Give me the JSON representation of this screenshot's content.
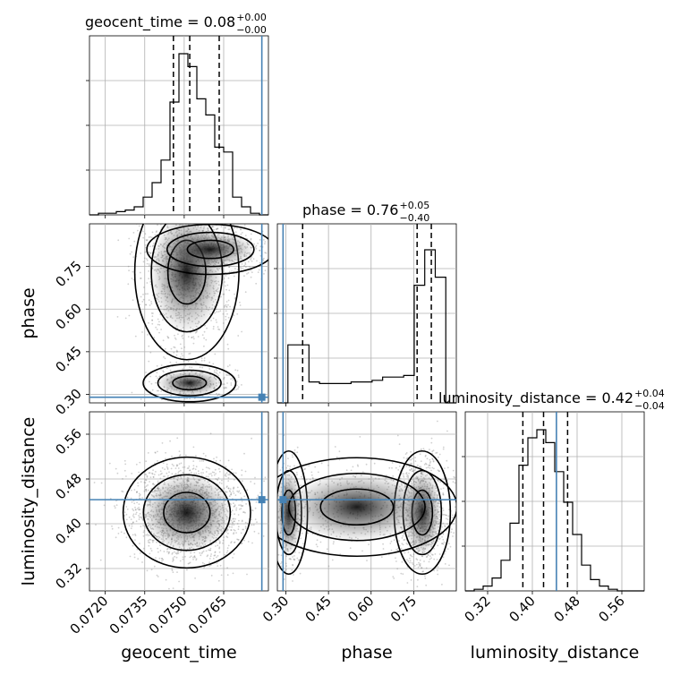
{
  "chart_data": {
    "type": "corner",
    "parameters": [
      {
        "name": "geocent_time",
        "title": "geocent_time = 0.08",
        "title_sup": "+0.00",
        "title_sub": "−0.00",
        "range": [
          0.0714,
          0.0782
        ],
        "ticks": [
          "0.0720",
          "0.0735",
          "0.0750",
          "0.0765"
        ],
        "tick_values": [
          0.072,
          0.0735,
          0.075,
          0.0765
        ],
        "truth": 0.07795,
        "quantiles": [
          0.07459,
          0.07521,
          0.07633
        ],
        "hist": [
          0.0,
          0.01,
          0.01,
          0.02,
          0.03,
          0.05,
          0.11,
          0.2,
          0.34,
          0.7,
          1.0,
          0.92,
          0.72,
          0.62,
          0.42,
          0.39,
          0.11,
          0.05,
          0.01,
          0.0
        ]
      },
      {
        "name": "phase",
        "title": "phase = 0.76",
        "title_sup": "+0.05",
        "title_sub": "−0.40",
        "range": [
          0.27,
          0.9
        ],
        "ticks": [
          "0.30",
          "0.45",
          "0.60",
          "0.75"
        ],
        "tick_values": [
          0.3,
          0.45,
          0.6,
          0.75
        ],
        "truth": 0.29,
        "quantiles": [
          0.359,
          0.762,
          0.812
        ],
        "hist": [
          0.0,
          0.36,
          0.36,
          0.13,
          0.12,
          0.12,
          0.12,
          0.13,
          0.13,
          0.14,
          0.16,
          0.16,
          0.17,
          0.73,
          0.95,
          0.78,
          0.0
        ]
      },
      {
        "name": "luminosity_distance",
        "title": "luminosity_distance = 0.42",
        "title_sup": "+0.04",
        "title_sub": "−0.04",
        "range": [
          0.28,
          0.6
        ],
        "ticks": [
          "0.32",
          "0.40",
          "0.48",
          "0.56"
        ],
        "tick_values": [
          0.32,
          0.4,
          0.48,
          0.56
        ],
        "truth": 0.443,
        "quantiles": [
          0.383,
          0.42,
          0.463
        ],
        "hist": [
          0.0,
          0.01,
          0.03,
          0.08,
          0.19,
          0.42,
          0.78,
          0.95,
          1.0,
          0.92,
          0.74,
          0.55,
          0.35,
          0.16,
          0.07,
          0.03,
          0.01,
          0.0,
          0.0,
          0.0
        ]
      }
    ],
    "grid": true,
    "truth_color": "#4682b4",
    "contour_color": "#000000"
  }
}
